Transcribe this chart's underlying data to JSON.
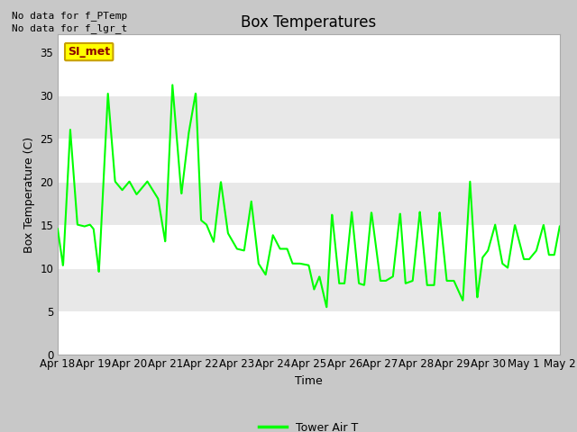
{
  "title": "Box Temperatures",
  "xlabel": "Time",
  "ylabel": "Box Temperature (C)",
  "ylim": [
    0,
    37
  ],
  "yticks": [
    0,
    5,
    10,
    15,
    20,
    25,
    30,
    35
  ],
  "x_labels": [
    "Apr 18",
    "Apr 19",
    "Apr 20",
    "Apr 21",
    "Apr 22",
    "Apr 23",
    "Apr 24",
    "Apr 25",
    "Apr 26",
    "Apr 27",
    "Apr 28",
    "Apr 29",
    "Apr 30",
    "May 1",
    "May 2"
  ],
  "line_color": "#00ff00",
  "line_width": 1.5,
  "outer_bg": "#c8c8c8",
  "plot_bg": "#ffffff",
  "band_color": "#e8e8e8",
  "annotation_texts": [
    "No data for f_PTemp",
    "No data for f_lgr_t"
  ],
  "legend_label": "Tower Air T",
  "si_met_label": "SI_met",
  "si_met_bg": "#ffff00",
  "si_met_text_color": "#8b0000",
  "si_met_edge_color": "#c8a000",
  "title_fontsize": 12,
  "axis_label_fontsize": 9,
  "tick_fontsize": 8.5,
  "annotation_fontsize": 8,
  "legend_fontsize": 9
}
